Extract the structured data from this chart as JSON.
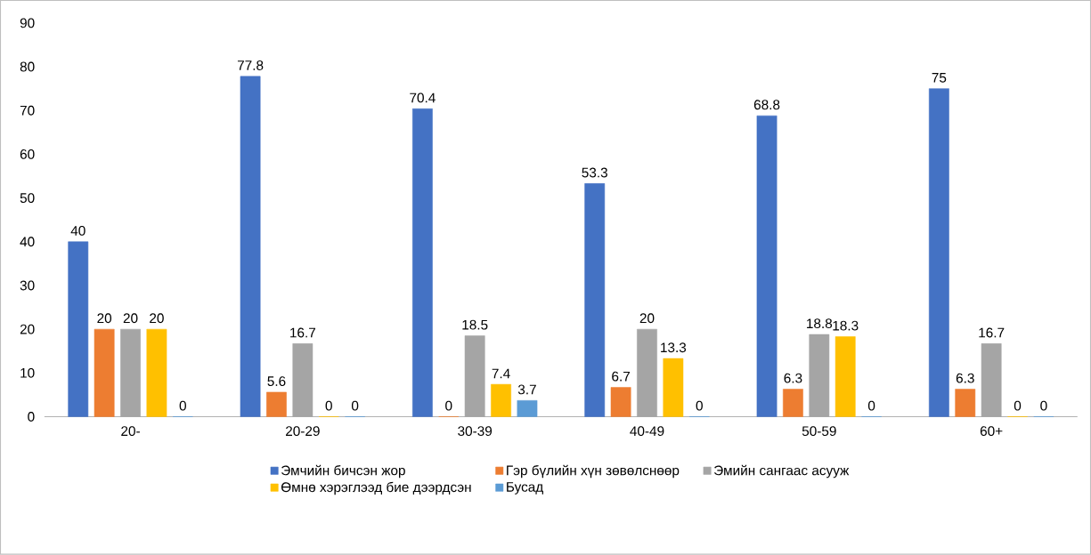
{
  "chart_data": {
    "type": "bar",
    "categories": [
      "20-",
      "20-29",
      "30-39",
      "40-49",
      "50-59",
      "60+"
    ],
    "series": [
      {
        "name": "Эмчийн бичсэн жор",
        "color": "#4472c4",
        "values": [
          40,
          77.8,
          70.4,
          53.3,
          68.8,
          75
        ]
      },
      {
        "name": "Гэр бүлийн хүн зөвөлснөөр",
        "color": "#ed7d31",
        "values": [
          20,
          5.6,
          0,
          6.7,
          6.3,
          6.3
        ]
      },
      {
        "name": "Эмийн сангаас асууж",
        "color": "#a5a5a5",
        "values": [
          20,
          16.7,
          18.5,
          20,
          18.8,
          16.7
        ]
      },
      {
        "name": "Өмнө хэрэглээд бие дээрдсэн",
        "color": "#ffc000",
        "values": [
          20,
          0,
          7.4,
          13.3,
          18.3,
          0
        ]
      },
      {
        "name": "Бусад",
        "color": "#5b9bd5",
        "values": [
          0,
          0,
          3.7,
          0,
          0,
          0
        ]
      }
    ],
    "ylim": [
      0,
      90
    ],
    "yticks": [
      0,
      10,
      20,
      30,
      40,
      50,
      60,
      70,
      80,
      90
    ],
    "data_labels": true,
    "legend": "bottom"
  }
}
